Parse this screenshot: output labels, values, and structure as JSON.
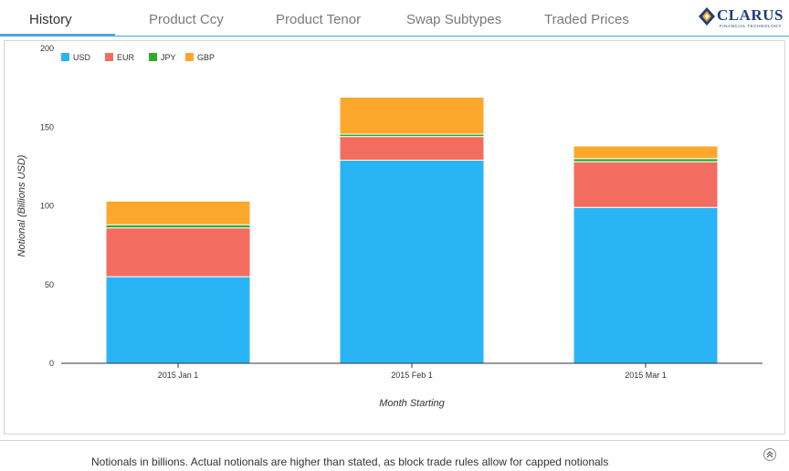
{
  "tabs": [
    {
      "label": "History",
      "active": true
    },
    {
      "label": "Product Ccy",
      "active": false
    },
    {
      "label": "Product Tenor",
      "active": false
    },
    {
      "label": "Swap Subtypes",
      "active": false
    },
    {
      "label": "Traded Prices",
      "active": false
    }
  ],
  "logo": {
    "name": "CLARUS",
    "tagline": "FINANCIAL TECHNOLOGY"
  },
  "colors": {
    "accent": "#4fa6d8",
    "USD": "#29b5f5",
    "EUR": "#f26d60",
    "JPY": "#2eaa2e",
    "GBP": "#fca82d"
  },
  "chart_data": {
    "type": "bar",
    "stacked": true,
    "categories": [
      "2015 Jan 1",
      "2015 Feb 1",
      "2015 Mar 1"
    ],
    "series": [
      {
        "name": "USD",
        "values": [
          55,
          129,
          99
        ]
      },
      {
        "name": "EUR",
        "values": [
          31,
          15,
          29
        ]
      },
      {
        "name": "JPY",
        "values": [
          2,
          1.5,
          2
        ]
      },
      {
        "name": "GBP",
        "values": [
          15,
          23.5,
          8
        ]
      }
    ],
    "xlabel": "Month Starting",
    "ylabel": "Notional (Billions USD)",
    "ylim": [
      0,
      200
    ],
    "yticks": [
      "0",
      "50",
      "100",
      "150",
      "200"
    ],
    "grid": false,
    "legend_position": "top-left"
  },
  "footer": {
    "note": "Notionals in billions. Actual notionals are higher than stated, as block trade rules allow for capped notionals"
  }
}
